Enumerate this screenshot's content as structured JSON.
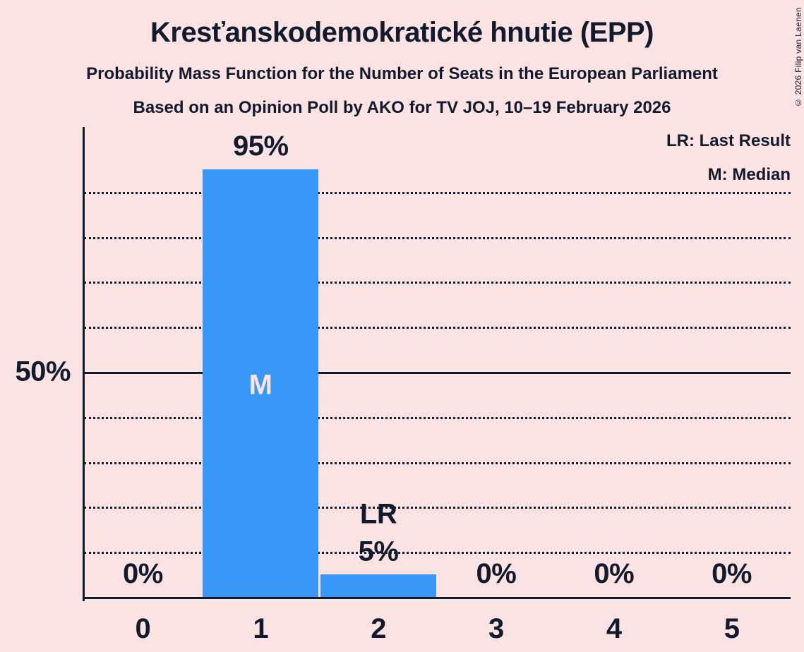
{
  "header": {
    "title": "Kresťanskodemokratické hnutie (EPP)",
    "subtitle1": "Probability Mass Function for the Number of Seats in the European Parliament",
    "subtitle2": "Based on an Opinion Poll by AKO for TV JOJ, 10–19 February 2026"
  },
  "legend": {
    "lr": "LR: Last Result",
    "m": "M: Median"
  },
  "copyright": "© 2026 Filip van Laenen",
  "colors": {
    "background": "#FCE3E3",
    "bar": "#3897F7",
    "text": "#121B2E"
  },
  "chart_data": {
    "type": "bar",
    "title": "Kresťanskodemokratické hnutie (EPP)",
    "categories": [
      "0",
      "1",
      "2",
      "3",
      "4",
      "5"
    ],
    "values": [
      0,
      95,
      5,
      0,
      0,
      0
    ],
    "value_labels": [
      "0%",
      "95%",
      "5%",
      "0%",
      "0%",
      "0%"
    ],
    "ylim": [
      0,
      100
    ],
    "gridline_step_pct": 10,
    "solid_gridline_pct": 50,
    "ytick": {
      "pct": 50,
      "label": "50%"
    },
    "median_category": "1",
    "median_label": "M",
    "last_result_category": "2",
    "last_result_label": "LR",
    "legend_position": "top-right",
    "grid": "dotted-horizontal"
  }
}
